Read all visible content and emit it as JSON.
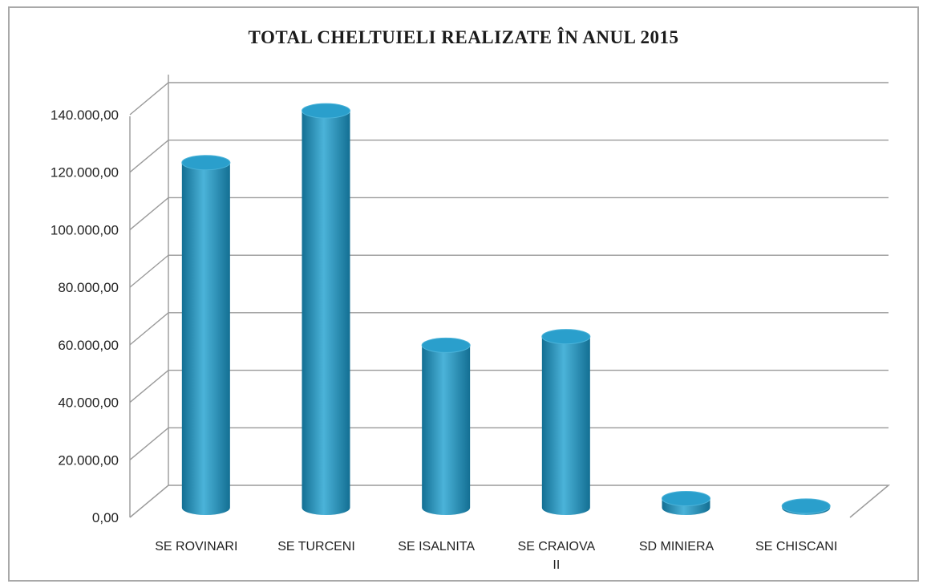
{
  "chart_data": {
    "type": "bar",
    "style": "3d-cylinder",
    "title": "TOTAL CHELTUIELI REALIZATE ÎN ANUL 2015",
    "xlabel": "",
    "ylabel": "",
    "categories": [
      [
        "SE ROVINARI"
      ],
      [
        "SE TURCENI"
      ],
      [
        "SE ISALNITA"
      ],
      [
        "SE CRAIOVA",
        "II"
      ],
      [
        "SD MINIERA"
      ],
      [
        "SE CHISCANI"
      ]
    ],
    "series": [
      {
        "values": [
          120000,
          138000,
          56500,
          59500,
          3200,
          600
        ]
      }
    ],
    "ylim": [
      0,
      140000
    ],
    "yticks": [
      "0,00",
      "20.000,00",
      "40.000,00",
      "60.000,00",
      "80.000,00",
      "100.000,00",
      "120.000,00",
      "140.000,00"
    ],
    "grid": true,
    "legend": "none",
    "colors": {
      "bar": "#2595c0",
      "bar_light": "#4bb3d9",
      "bar_dark": "#136f93",
      "bar_top": "#2a9fcc",
      "grid": "#9a9a9a"
    }
  }
}
